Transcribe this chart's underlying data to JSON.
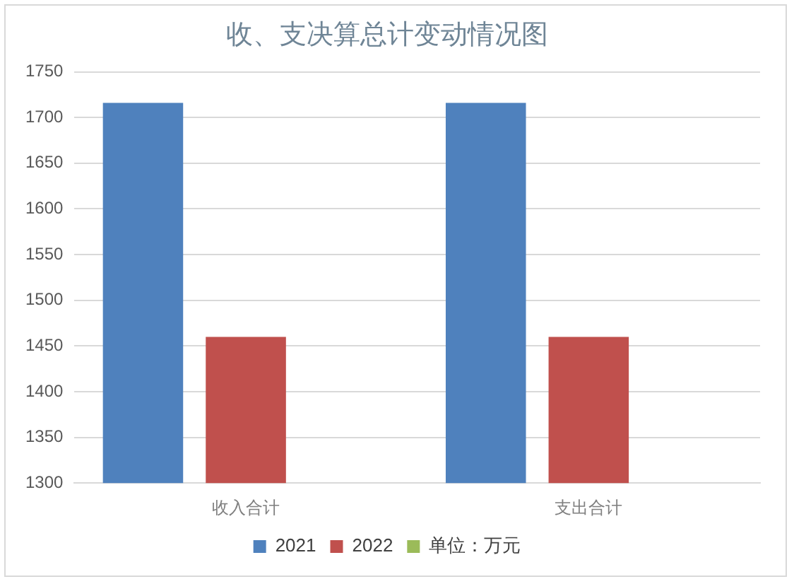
{
  "chart_data": {
    "type": "bar",
    "title": "收、支决算总计变动情况图",
    "categories": [
      "收入合计",
      "支出合计"
    ],
    "series": [
      {
        "name": "2021",
        "color": "#4f81bd",
        "values": [
          1716,
          1716
        ]
      },
      {
        "name": "2022",
        "color": "#c0504d",
        "values": [
          1460,
          1460
        ]
      },
      {
        "name": "单位：万元",
        "color": "#9bbb59",
        "values": [
          null,
          null
        ]
      }
    ],
    "ylim": [
      1300,
      1750
    ],
    "yticks": [
      1300,
      1350,
      1400,
      1450,
      1500,
      1550,
      1600,
      1650,
      1700,
      1750
    ],
    "grid": "y",
    "legend": "bottom"
  }
}
